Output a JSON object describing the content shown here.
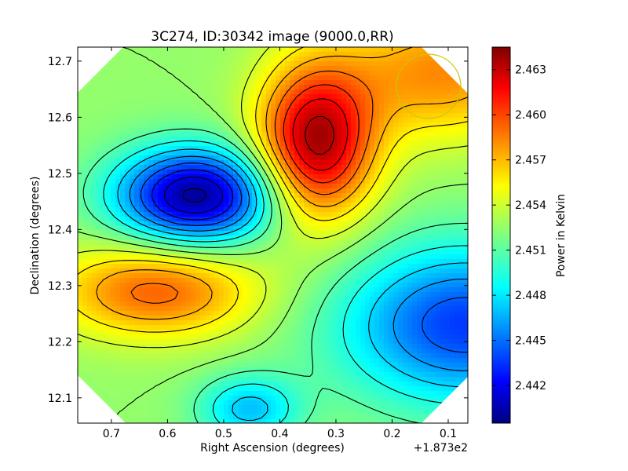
{
  "chart_data": {
    "type": "heatmap",
    "title": "3C274, ID:30342 image (9000.0,RR)",
    "xlabel": "Right Ascension (degrees)",
    "ylabel": "Declination (degrees)",
    "x_offset_label": "+1.873e2",
    "xlim": [
      0.76,
      0.065
    ],
    "ylim": [
      12.055,
      12.725
    ],
    "x_ticks": [
      0.7,
      0.6,
      0.5,
      0.4,
      0.3,
      0.2,
      0.1
    ],
    "x_tick_labels": [
      "0.7",
      "0.6",
      "0.5",
      "0.4",
      "0.3",
      "0.2",
      "0.1"
    ],
    "y_ticks": [
      12.1,
      12.2,
      12.3,
      12.4,
      12.5,
      12.6,
      12.7
    ],
    "y_tick_labels": [
      "12.1",
      "12.2",
      "12.3",
      "12.4",
      "12.5",
      "12.6",
      "12.7"
    ],
    "colorbar": {
      "label": "Power in Kelvin",
      "colormap": "jet",
      "range": [
        2.4395,
        2.4645
      ],
      "ticks": [
        2.442,
        2.445,
        2.448,
        2.451,
        2.454,
        2.457,
        2.46,
        2.463
      ],
      "tick_labels": [
        "2.442",
        "2.445",
        "2.448",
        "2.451",
        "2.454",
        "2.457",
        "2.460",
        "2.463"
      ]
    },
    "features": [
      {
        "kind": "max",
        "ra": 0.335,
        "dec": 12.555,
        "value": 2.4635
      },
      {
        "kind": "min",
        "ra": 0.55,
        "dec": 12.46,
        "value": 2.44
      },
      {
        "kind": "max",
        "ra": 0.62,
        "dec": 12.29,
        "value": 2.459
      },
      {
        "kind": "min",
        "ra": 0.07,
        "dec": 12.23,
        "value": 2.444
      },
      {
        "kind": "min",
        "ra": 0.455,
        "dec": 12.08,
        "value": 2.4475
      },
      {
        "kind": "max",
        "ra": 0.11,
        "dec": 12.68,
        "value": 2.458
      }
    ],
    "beam_color": "#c8c800"
  }
}
